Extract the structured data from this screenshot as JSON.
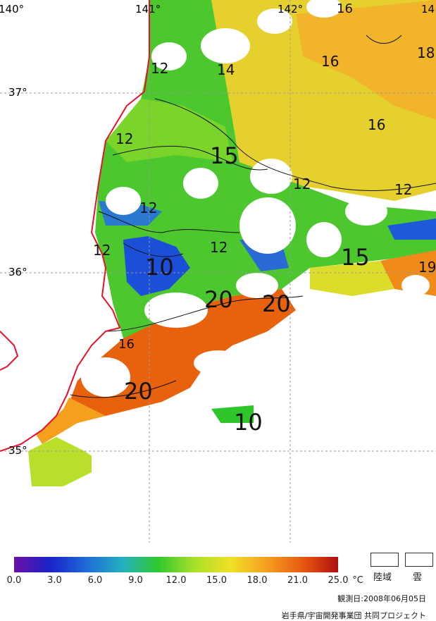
{
  "map": {
    "lon_labels": [
      "140°",
      "141°",
      "142°",
      "14"
    ],
    "lat_labels": [
      "37°",
      "36°",
      "35°"
    ],
    "contour_labels": [
      "16",
      "16",
      "16",
      "18",
      "12",
      "14",
      "12",
      "15",
      "12",
      "12",
      "12",
      "12",
      "10",
      "12",
      "15",
      "19",
      "20",
      "20",
      "16",
      "20",
      "10"
    ],
    "colors": {
      "coast": "#e8102a",
      "grid": "#9a9a9a",
      "cold": "#1b4fd8",
      "cool": "#2ec62a",
      "mid": "#b8e02a",
      "warm": "#e8d22a",
      "warmer": "#f4a01e",
      "hot": "#e8620e",
      "cloud": "#ffffff"
    }
  },
  "colorbar": {
    "ticks": [
      "0.0",
      "3.0",
      "6.0",
      "9.0",
      "12.0",
      "15.0",
      "18.0",
      "21.0",
      "25.0"
    ],
    "unit": "°C",
    "stops": [
      "#6a0fa8",
      "#1a22c8",
      "#1f6ad8",
      "#22b0c0",
      "#2ec82e",
      "#a8e02a",
      "#f0e028",
      "#f5a020",
      "#e85a10",
      "#b01010"
    ]
  },
  "legend": {
    "land": "陸域",
    "cloud": "雲"
  },
  "footer": {
    "obs_date": "観測日:2008年06月05日",
    "credit": "岩手県/宇宙開発事業団 共同プロジェクト"
  }
}
